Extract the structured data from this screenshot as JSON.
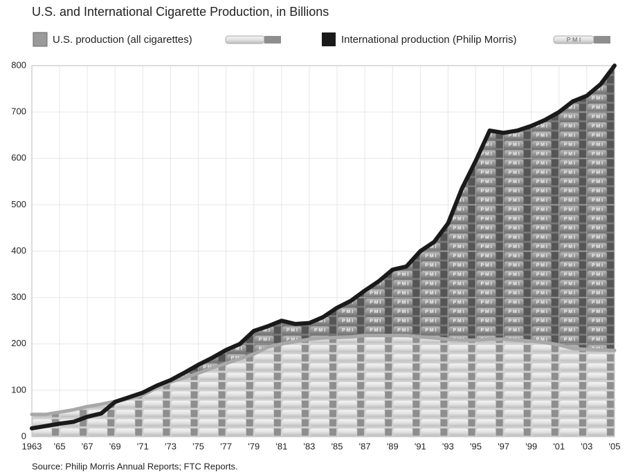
{
  "chart_data": {
    "type": "area",
    "title": "U.S. and International Cigarette Production, in Billions",
    "source": "Source: Philip Morris Annual Reports; FTC Reports.",
    "x": [
      1963,
      1964,
      1965,
      1966,
      1967,
      1968,
      1969,
      1970,
      1971,
      1972,
      1973,
      1974,
      1975,
      1976,
      1977,
      1978,
      1979,
      1980,
      1981,
      1982,
      1983,
      1984,
      1985,
      1986,
      1987,
      1988,
      1989,
      1990,
      1991,
      1992,
      1993,
      1994,
      1995,
      1996,
      1997,
      1998,
      1999,
      2000,
      2001,
      2002,
      2003,
      2004,
      2005
    ],
    "series": [
      {
        "name": "U.S. production (all cigarettes)",
        "color": "#a8a8a8",
        "values": [
          48,
          48,
          53,
          58,
          65,
          70,
          76,
          82,
          90,
          105,
          118,
          127,
          137,
          148,
          158,
          168,
          178,
          193,
          200,
          205,
          210,
          213,
          214,
          215,
          218,
          218,
          218,
          218,
          215,
          213,
          210,
          208,
          208,
          210,
          210,
          208,
          206,
          203,
          198,
          190,
          188,
          187,
          186
        ]
      },
      {
        "name": "International production (Philip Morris)",
        "color": "#1a1a1a",
        "marker_text": "P M I",
        "values": [
          18,
          23,
          28,
          32,
          43,
          50,
          75,
          85,
          95,
          110,
          122,
          138,
          155,
          170,
          187,
          200,
          228,
          238,
          250,
          243,
          245,
          258,
          278,
          293,
          315,
          335,
          360,
          367,
          400,
          420,
          460,
          535,
          595,
          660,
          655,
          660,
          670,
          683,
          700,
          723,
          735,
          760,
          800
        ]
      }
    ],
    "xlim": [
      1963,
      2005
    ],
    "xticks": [
      1963,
      {
        "value": 1965,
        "label": "'65"
      },
      {
        "value": 1967,
        "label": "'67"
      },
      {
        "value": 1969,
        "label": "'69"
      },
      {
        "value": 1971,
        "label": "'71"
      },
      {
        "value": 1973,
        "label": "'73"
      },
      {
        "value": 1975,
        "label": "'75"
      },
      {
        "value": 1977,
        "label": "'77"
      },
      {
        "value": 1979,
        "label": "'79"
      },
      {
        "value": 1981,
        "label": "'81"
      },
      {
        "value": 1983,
        "label": "'83"
      },
      {
        "value": 1985,
        "label": "'85"
      },
      {
        "value": 1987,
        "label": "'87"
      },
      {
        "value": 1989,
        "label": "'89"
      },
      {
        "value": 1991,
        "label": "'91"
      },
      {
        "value": 1993,
        "label": "'93"
      },
      {
        "value": 1995,
        "label": "'95"
      },
      {
        "value": 1997,
        "label": "'97"
      },
      {
        "value": 1999,
        "label": "'99"
      },
      {
        "value": 2001,
        "label": "'01"
      },
      {
        "value": 2003,
        "label": "'03"
      },
      {
        "value": 2005,
        "label": "'05"
      }
    ],
    "ylim": [
      0,
      800
    ],
    "yticks": [
      0,
      100,
      200,
      300,
      400,
      500,
      600,
      700,
      800
    ],
    "grid": true
  }
}
